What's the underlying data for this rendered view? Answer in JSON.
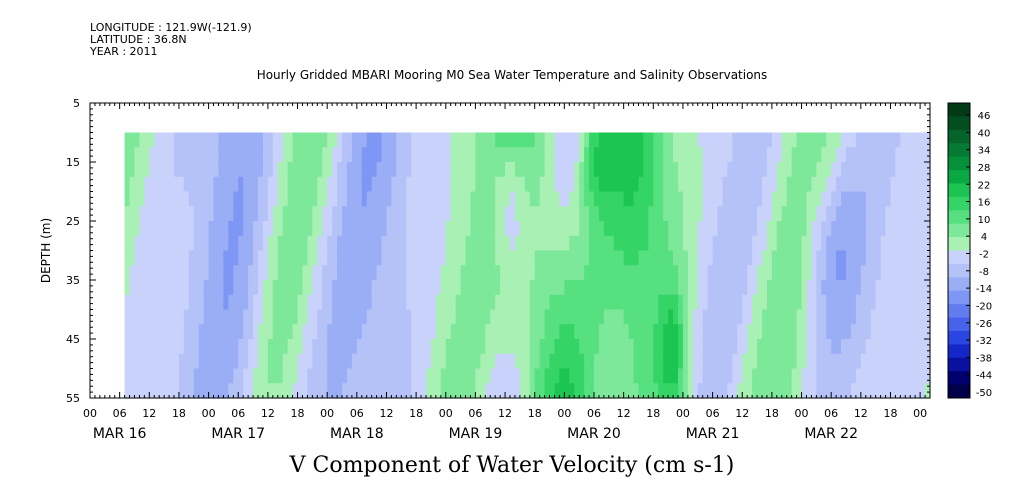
{
  "header": {
    "longitude": "LONGITUDE : 121.9W(-121.9)",
    "latitude": "LATITUDE : 36.8N",
    "year": "YEAR : 2011"
  },
  "chart_data": {
    "type": "heatmap",
    "title": "Hourly Gridded MBARI Mooring M0 Sea Water Temperature and Salinity Observations",
    "subtitle": "V Component of Water Velocity (cm s-1)",
    "ylabel": "DEPTH (m)",
    "xlabel": "",
    "y_ticks": [
      5,
      15,
      25,
      35,
      45,
      55
    ],
    "y_range": [
      5,
      55
    ],
    "y_reversed": true,
    "data_depth_range": [
      10,
      55
    ],
    "x_hour_labels": [
      "00",
      "06",
      "12",
      "18",
      "00",
      "06",
      "12",
      "18",
      "00",
      "06",
      "12",
      "18",
      "00",
      "06",
      "12",
      "18",
      "00",
      "06",
      "12",
      "18",
      "00",
      "06",
      "12",
      "18",
      "00",
      "06",
      "12",
      "18",
      "00"
    ],
    "x_day_labels": [
      "MAR 16",
      "MAR 17",
      "MAR 18",
      "MAR 19",
      "MAR 20",
      "MAR 21",
      "MAR 22"
    ],
    "x_range_hours": [
      0,
      170
    ],
    "data_start_hour": 7,
    "colorbar": {
      "levels": [
        46,
        40,
        34,
        28,
        22,
        16,
        10,
        4,
        -2,
        -8,
        -14,
        -20,
        -26,
        -32,
        -38,
        -44,
        -50
      ],
      "range": [
        -50,
        52
      ],
      "colors": [
        "#00004a",
        "#00006e",
        "#0a10a0",
        "#1428c8",
        "#2a46e0",
        "#4662ea",
        "#627cf0",
        "#7e96f4",
        "#9aaef6",
        "#b4c2f8",
        "#c8d2fa",
        "#a8f0b4",
        "#7ee89a",
        "#56e080",
        "#34d466",
        "#1cc452",
        "#0aa842",
        "#06903a",
        "#057a32",
        "#04642a",
        "#034e20",
        "#023a18"
      ]
    },
    "columns_by_day_phase": [
      {
        "hour_range": [
          7,
          24
        ],
        "pattern": "mixed light green and blue"
      },
      {
        "hour_range": [
          24,
          48
        ],
        "pattern": "mostly blue with green patches"
      },
      {
        "hour_range": [
          48,
          72
        ],
        "pattern": "blue with light green"
      },
      {
        "hour_range": [
          72,
          96
        ],
        "pattern": "strong green bands with blue near MAR 19 12"
      },
      {
        "hour_range": [
          96,
          120
        ],
        "pattern": "strong green, darkest near MAR 20 06 and MAR 21 00"
      },
      {
        "hour_range": [
          120,
          144
        ],
        "pattern": "green then blue"
      },
      {
        "hour_range": [
          144,
          170
        ],
        "pattern": "blue with green near bottom right"
      }
    ]
  }
}
